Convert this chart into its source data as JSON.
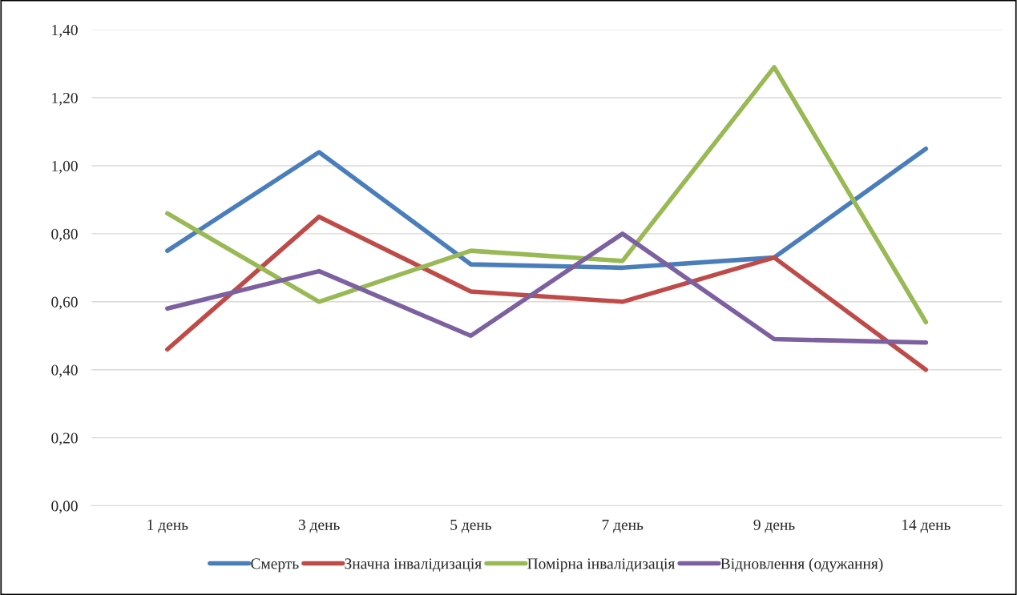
{
  "chart_data": {
    "type": "line",
    "categories": [
      "1 день",
      "3 день",
      "5 день",
      "7 день",
      "9 день",
      "14 день"
    ],
    "series": [
      {
        "name": "Смерть",
        "color": "#4a7ebb",
        "values": [
          0.75,
          1.04,
          0.71,
          0.7,
          0.73,
          1.05
        ]
      },
      {
        "name": "Значна інвалідизація",
        "color": "#be4b48",
        "values": [
          0.46,
          0.85,
          0.63,
          0.6,
          0.73,
          0.4
        ]
      },
      {
        "name": "Помірна інвалідизація",
        "color": "#98b954",
        "values": [
          0.86,
          0.6,
          0.75,
          0.72,
          1.29,
          0.54
        ]
      },
      {
        "name": "Відновлення (одужання)",
        "color": "#7d60a0",
        "values": [
          0.58,
          0.69,
          0.5,
          0.8,
          0.49,
          0.48
        ]
      }
    ],
    "ylim": [
      0,
      1.4
    ],
    "yticks": [
      {
        "value": 0,
        "label": "0,00"
      },
      {
        "value": 0.2,
        "label": "0,20"
      },
      {
        "value": 0.4,
        "label": "0,40"
      },
      {
        "value": 0.6,
        "label": "0,60"
      },
      {
        "value": 0.8,
        "label": "0,80"
      },
      {
        "value": 1.0,
        "label": "1,00"
      },
      {
        "value": 1.2,
        "label": "1,20"
      },
      {
        "value": 1.4,
        "label": "1,40"
      }
    ],
    "grid": "y",
    "legend": "bottom",
    "marker": "none",
    "line_style": "solid"
  }
}
